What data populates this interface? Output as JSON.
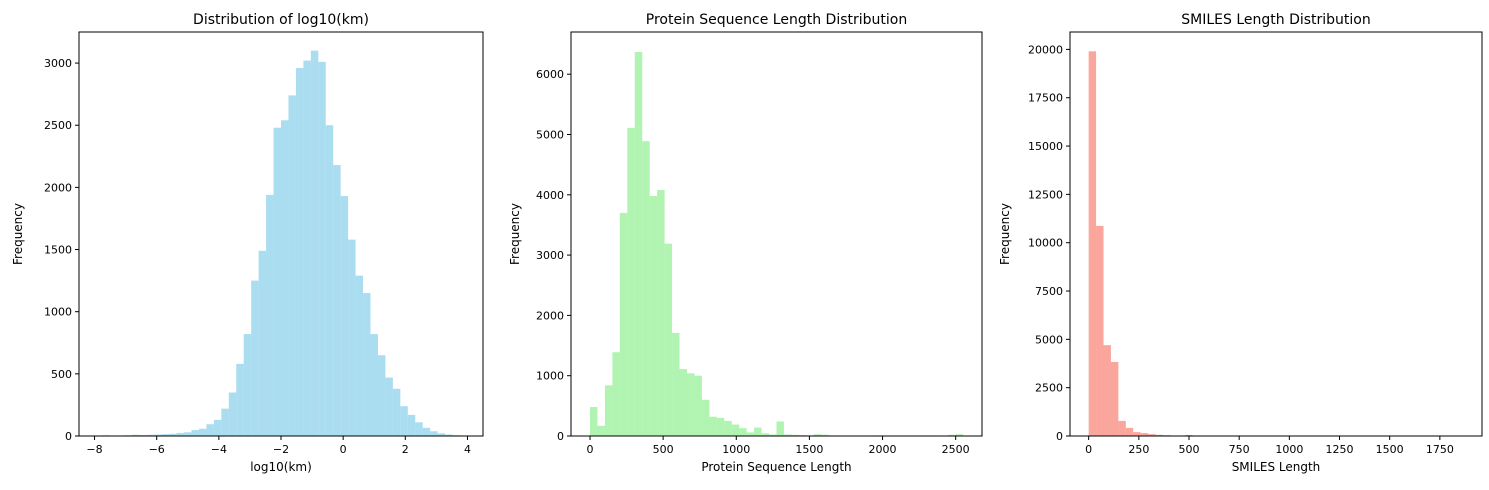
{
  "chart_data": [
    {
      "type": "bar",
      "title": "Distribution of log10(km)",
      "xlabel": "log10(km)",
      "ylabel": "Frequency",
      "color": "#87ceeb",
      "alpha": 0.7,
      "xlim": [
        -8.5,
        4.5
      ],
      "ylim": [
        0,
        3250
      ],
      "xticks": [
        -8,
        -6,
        -4,
        -2,
        0,
        2,
        4
      ],
      "xtick_labels": [
        "−8",
        "−6",
        "−4",
        "−2",
        "0",
        "2",
        "4"
      ],
      "yticks": [
        0,
        500,
        1000,
        1500,
        2000,
        2500,
        3000
      ],
      "ytick_labels": [
        "0",
        "500",
        "1000",
        "1500",
        "2000",
        "2500",
        "3000"
      ],
      "bin_edges": [
        -8.0,
        -7.76,
        -7.52,
        -7.28,
        -7.04,
        -6.8,
        -6.56,
        -6.32,
        -6.08,
        -5.84,
        -5.6,
        -5.36,
        -5.12,
        -4.88,
        -4.64,
        -4.4,
        -4.16,
        -3.92,
        -3.68,
        -3.44,
        -3.2,
        -2.96,
        -2.72,
        -2.48,
        -2.24,
        -2.0,
        -1.76,
        -1.52,
        -1.28,
        -1.04,
        -0.8,
        -0.56,
        -0.32,
        -0.08,
        0.16,
        0.4,
        0.64,
        0.88,
        1.12,
        1.36,
        1.6,
        1.84,
        2.08,
        2.32,
        2.56,
        2.8,
        3.04,
        3.28,
        3.52,
        3.76,
        4.0
      ],
      "values": [
        4,
        6,
        2,
        3,
        6,
        10,
        8,
        10,
        12,
        15,
        18,
        25,
        30,
        48,
        58,
        95,
        130,
        220,
        350,
        580,
        820,
        1250,
        1490,
        1940,
        2480,
        2540,
        2740,
        2960,
        3020,
        3100,
        3010,
        2500,
        2180,
        1930,
        1580,
        1290,
        1150,
        820,
        650,
        470,
        380,
        240,
        170,
        110,
        66,
        38,
        22,
        12,
        6,
        3
      ]
    },
    {
      "type": "bar",
      "title": "Protein Sequence Length Distribution",
      "xlabel": "Protein Sequence Length",
      "ylabel": "Frequency",
      "color": "#90ee90",
      "alpha": 0.7,
      "xlim": [
        -130,
        2680
      ],
      "ylim": [
        0,
        6700
      ],
      "xticks": [
        0,
        500,
        1000,
        1500,
        2000,
        2500
      ],
      "xtick_labels": [
        "0",
        "500",
        "1000",
        "1500",
        "2000",
        "2500"
      ],
      "yticks": [
        0,
        1000,
        2000,
        3000,
        4000,
        5000,
        6000
      ],
      "ytick_labels": [
        "0",
        "1000",
        "2000",
        "3000",
        "4000",
        "5000",
        "6000"
      ],
      "bin_edges": [
        0,
        51,
        102,
        153,
        204,
        255,
        306,
        357,
        408,
        459,
        510,
        561,
        612,
        663,
        714,
        765,
        816,
        867,
        918,
        969,
        1020,
        1071,
        1122,
        1173,
        1224,
        1275,
        1326,
        1377,
        1428,
        1479,
        1530,
        1581,
        1632,
        1683,
        1734,
        1785,
        1836,
        1887,
        1938,
        1989,
        2040,
        2091,
        2142,
        2193,
        2244,
        2295,
        2346,
        2397,
        2448,
        2499,
        2550
      ],
      "values": [
        480,
        170,
        840,
        1390,
        3700,
        5110,
        6370,
        4890,
        3980,
        4080,
        3190,
        1710,
        1110,
        1040,
        1000,
        600,
        320,
        300,
        250,
        190,
        130,
        60,
        140,
        45,
        25,
        240,
        25,
        20,
        15,
        10,
        30,
        20,
        10,
        8,
        8,
        5,
        5,
        8,
        10,
        6,
        5,
        5,
        8,
        5,
        8,
        10,
        8,
        5,
        20,
        30
      ]
    },
    {
      "type": "bar",
      "title": "SMILES Length Distribution",
      "xlabel": "SMILES Length",
      "ylabel": "Frequency",
      "color": "#fa8072",
      "alpha": 0.7,
      "xlim": [
        -93,
        1960
      ],
      "ylim": [
        0,
        20900
      ],
      "xticks": [
        0,
        250,
        500,
        750,
        1000,
        1250,
        1500,
        1750
      ],
      "xtick_labels": [
        "0",
        "250",
        "500",
        "750",
        "1000",
        "1250",
        "1500",
        "1750"
      ],
      "yticks": [
        0,
        2500,
        5000,
        7500,
        10000,
        12500,
        15000,
        17500,
        20000
      ],
      "ytick_labels": [
        "0",
        "2500",
        "5000",
        "7500",
        "10000",
        "12500",
        "15000",
        "17500",
        "20000"
      ],
      "bin_edges": [
        0,
        37,
        74,
        111,
        148,
        185,
        222,
        259,
        296,
        333,
        370,
        407,
        444,
        481,
        518,
        555,
        592,
        629,
        666,
        703,
        740,
        777,
        814,
        851,
        888,
        925,
        962,
        999,
        1036,
        1073,
        1110,
        1147,
        1184,
        1221,
        1258,
        1295,
        1332,
        1369,
        1406,
        1443,
        1480,
        1517,
        1554,
        1591,
        1628,
        1665,
        1702,
        1739,
        1776,
        1813,
        1850
      ],
      "values": [
        19900,
        10870,
        4700,
        3830,
        780,
        420,
        200,
        150,
        100,
        60,
        40,
        25,
        25,
        50,
        15,
        10,
        8,
        6,
        5,
        4,
        4,
        3,
        3,
        2,
        2,
        2,
        2,
        1,
        1,
        1,
        1,
        1,
        1,
        1,
        1,
        1,
        1,
        1,
        1,
        1,
        1,
        1,
        1,
        1,
        1,
        1,
        1,
        1,
        1,
        1
      ]
    }
  ]
}
